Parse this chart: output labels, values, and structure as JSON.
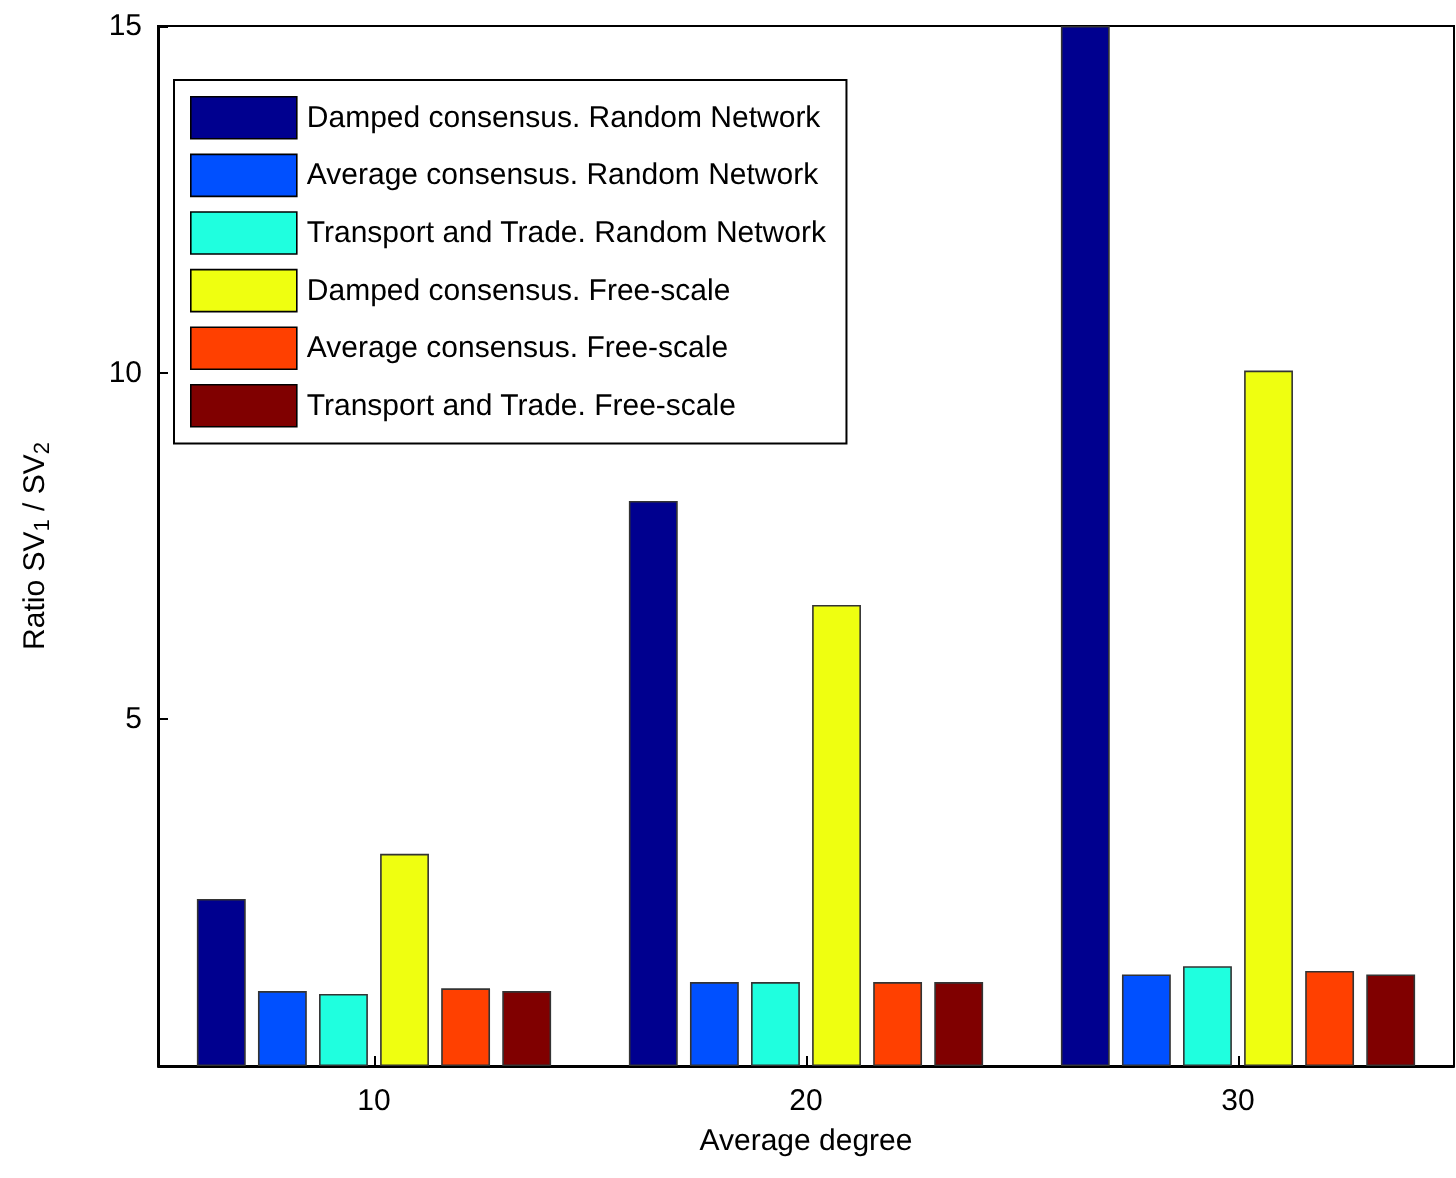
{
  "chart_data": {
    "type": "bar",
    "xlabel": "Average degree",
    "ylabel": "Ratio SV$_{1}$ / SV$_{2}$",
    "categories": [
      "10",
      "20",
      "30"
    ],
    "series": [
      {
        "name": "Damped consensus. Random Network",
        "color": "#00008f",
        "values": [
          2.41,
          8.15,
          15
        ]
      },
      {
        "name": "Average consensus. Random Network",
        "color": "#0050ff",
        "values": [
          1.08,
          1.21,
          1.32
        ]
      },
      {
        "name": "Transport and Trade. Random Network",
        "color": "#1fffdf",
        "values": [
          1.04,
          1.21,
          1.44
        ]
      },
      {
        "name": "Damped consensus. Free-scale",
        "color": "#efff10",
        "values": [
          3.06,
          6.65,
          10.03
        ]
      },
      {
        "name": "Average consensus. Free-scale",
        "color": "#ff4000",
        "values": [
          1.12,
          1.21,
          1.37
        ]
      },
      {
        "name": "Transport and Trade. Free-scale",
        "color": "#800000",
        "values": [
          1.08,
          1.21,
          1.32
        ]
      }
    ],
    "ylim": [
      0,
      15
    ],
    "yticks": [
      5,
      10,
      15
    ],
    "grid": false,
    "legend": "top left"
  }
}
